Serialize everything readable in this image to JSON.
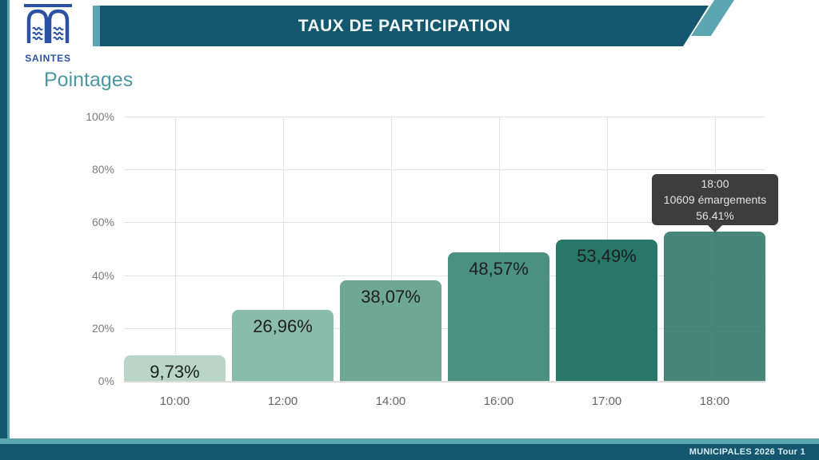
{
  "logo": {
    "name": "SAINTES"
  },
  "header": {
    "title": "TAUX DE PARTICIPATION"
  },
  "page": {
    "subtitle": "Pointages"
  },
  "footer": {
    "label": "MUNICIPALES 2026 Tour 1"
  },
  "colors": {
    "band_dark_teal": "#14576f",
    "accent_light_teal": "#5ba6b0",
    "subtitle_teal": "#4d97a3",
    "logo_blue": "#2a51a3",
    "tooltip_bg": "#3d3d3d"
  },
  "chart_data": {
    "type": "bar",
    "title": "Pointages",
    "categories": [
      "10:00",
      "12:00",
      "14:00",
      "16:00",
      "17:00",
      "18:00"
    ],
    "values": [
      9.73,
      26.96,
      38.07,
      48.57,
      53.49,
      56.41
    ],
    "bar_labels": [
      "9,73%",
      "26,96%",
      "38,07%",
      "48,57%",
      "53,49%",
      ""
    ],
    "bar_colors": [
      "#b9d5c9",
      "#8abcab",
      "#6fa795",
      "#4a9182",
      "#277869",
      "rgba(31,107,92,0.82)"
    ],
    "y_ticks": [
      "100%",
      "80%",
      "60%",
      "40%",
      "20%",
      "0%"
    ],
    "ylim": [
      0,
      100
    ],
    "grid": true,
    "legend": "none",
    "ylabel": "",
    "xlabel": "",
    "tooltip": {
      "line1": "18:00",
      "line2": "10609 émargements",
      "line3": "56.41%"
    }
  }
}
